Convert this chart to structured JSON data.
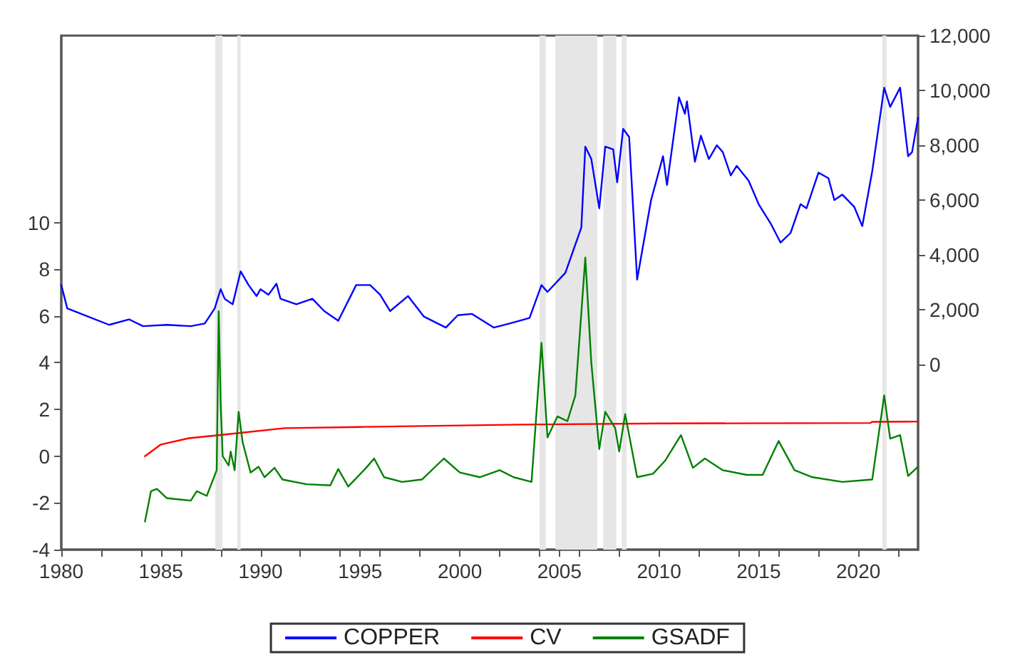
{
  "chart_data": {
    "type": "line",
    "xlim": [
      1980,
      2023
    ],
    "xticks": [
      1980,
      1985,
      1990,
      1995,
      2000,
      2005,
      2010,
      2015,
      2020
    ],
    "ylim": [
      -4,
      18
    ],
    "yticks": [
      -4,
      -2,
      0,
      2,
      4,
      6,
      8,
      10
    ],
    "y2lim": [
      -6750,
      12000
    ],
    "y2ticks": [
      {
        "value": 0,
        "label": "0"
      },
      {
        "value": 2000,
        "label": "2,000"
      },
      {
        "value": 4000,
        "label": "4,000"
      },
      {
        "value": 6000,
        "label": "6,000"
      },
      {
        "value": 8000,
        "label": "8,000"
      },
      {
        "value": 10000,
        "label": "10,000"
      },
      {
        "value": 12000,
        "label": "12,000"
      }
    ],
    "grid": false,
    "legend": "bottom",
    "marker": "none",
    "line_style": "solid",
    "bands": [
      {
        "axis": "x",
        "from": 1987.73,
        "to": 1988.09,
        "color": "#e6e6e6"
      },
      {
        "axis": "x",
        "from": 1988.83,
        "to": 1989.0,
        "color": "#e6e6e6"
      },
      {
        "axis": "x",
        "from": 2004.0,
        "to": 2004.32,
        "color": "#e6e6e6"
      },
      {
        "axis": "x",
        "from": 2004.8,
        "to": 2006.9,
        "color": "#e6e6e6"
      },
      {
        "axis": "x",
        "from": 2007.2,
        "to": 2007.85,
        "color": "#e6e6e6"
      },
      {
        "axis": "x",
        "from": 2008.13,
        "to": 2008.37,
        "color": "#e6e6e6"
      },
      {
        "axis": "x",
        "from": 2021.2,
        "to": 2021.42,
        "color": "#e6e6e6"
      }
    ],
    "series": [
      {
        "name": "COPPER",
        "color": "#0000ff",
        "axis": "y2",
        "x": [
          1980.0,
          1980.3,
          1981.0,
          1982.4,
          1983.4,
          1984.1,
          1985.3,
          1986.5,
          1987.2,
          1987.7,
          1988.0,
          1988.2,
          1988.6,
          1989.0,
          1989.4,
          1989.8,
          1990.0,
          1990.4,
          1990.8,
          1991.0,
          1991.8,
          1992.6,
          1993.2,
          1993.9,
          1994.8,
          1995.5,
          1996.0,
          1996.5,
          1997.4,
          1998.2,
          1999.3,
          1999.9,
          2000.6,
          2001.7,
          2002.5,
          2003.5,
          2004.1,
          2004.4,
          2005.3,
          2006.1,
          2006.3,
          2006.6,
          2007.0,
          2007.3,
          2007.7,
          2007.9,
          2008.2,
          2008.5,
          2008.9,
          2009.6,
          2010.2,
          2010.4,
          2011.0,
          2011.3,
          2011.4,
          2011.8,
          2012.1,
          2012.5,
          2012.9,
          2013.2,
          2013.6,
          2013.9,
          2014.5,
          2015.0,
          2015.6,
          2016.1,
          2016.6,
          2017.1,
          2017.4,
          2018.0,
          2018.5,
          2018.8,
          2019.2,
          2019.8,
          2020.2,
          2020.7,
          2021.3,
          2021.6,
          2022.1,
          2022.5,
          2022.7,
          2023.0
        ],
        "values": [
          2900,
          2050,
          1850,
          1450,
          1650,
          1400,
          1450,
          1400,
          1500,
          2050,
          2750,
          2400,
          2200,
          3400,
          2900,
          2500,
          2750,
          2550,
          2950,
          2400,
          2200,
          2400,
          1950,
          1600,
          2900,
          2900,
          2550,
          1950,
          2500,
          1750,
          1350,
          1800,
          1850,
          1350,
          1500,
          1700,
          2900,
          2650,
          3350,
          5000,
          7950,
          7500,
          5700,
          7950,
          7850,
          6650,
          8600,
          8300,
          3100,
          6000,
          7600,
          6550,
          9750,
          9150,
          9600,
          7400,
          8350,
          7500,
          8000,
          7750,
          6900,
          7250,
          6700,
          5850,
          5150,
          4450,
          4800,
          5850,
          5700,
          7000,
          6800,
          6000,
          6200,
          5750,
          5050,
          7050,
          10100,
          9400,
          10100,
          7600,
          7750,
          9000
        ]
      },
      {
        "name": "CV",
        "color": "#ff0000",
        "x": [
          1984.2,
          1985.0,
          1986.4,
          1987.9,
          1991.2,
          1995.0,
          2003.0,
          2010.0,
          2020.6,
          2020.7,
          2023.0
        ],
        "values": [
          0.0,
          0.5,
          0.77,
          0.9,
          1.2,
          1.25,
          1.35,
          1.4,
          1.42,
          1.47,
          1.48
        ]
      },
      {
        "name": "GSADF",
        "color": "#008000",
        "x": [
          1984.2,
          1984.5,
          1984.8,
          1985.3,
          1986.5,
          1986.8,
          1987.3,
          1987.8,
          1987.9,
          1988.0,
          1988.1,
          1988.4,
          1988.5,
          1988.7,
          1988.9,
          1989.1,
          1989.5,
          1989.9,
          1990.2,
          1990.7,
          1991.1,
          1992.3,
          1993.5,
          1993.9,
          1994.4,
          1995.3,
          1995.7,
          1996.2,
          1997.1,
          1998.1,
          1999.2,
          2000.0,
          2001.0,
          2002.0,
          2002.7,
          2003.6,
          2004.1,
          2004.4,
          2004.9,
          2005.4,
          2005.8,
          2006.3,
          2006.6,
          2007.0,
          2007.3,
          2007.8,
          2008.0,
          2008.3,
          2008.9,
          2009.7,
          2010.3,
          2011.1,
          2011.7,
          2012.3,
          2013.2,
          2014.4,
          2015.2,
          2016.0,
          2016.8,
          2017.7,
          2019.2,
          2020.7,
          2021.3,
          2021.6,
          2022.1,
          2022.5,
          2023.0
        ],
        "values": [
          -2.8,
          -1.5,
          -1.4,
          -1.8,
          -1.9,
          -1.5,
          -1.7,
          -0.6,
          6.2,
          2.2,
          0.0,
          -0.4,
          0.2,
          -0.6,
          1.9,
          0.6,
          -0.7,
          -0.45,
          -0.9,
          -0.5,
          -1.0,
          -1.2,
          -1.25,
          -0.55,
          -1.3,
          -0.5,
          -0.1,
          -0.9,
          -1.1,
          -1.0,
          -0.1,
          -0.7,
          -0.9,
          -0.6,
          -0.9,
          -1.1,
          4.85,
          0.8,
          1.7,
          1.5,
          2.6,
          8.5,
          4.0,
          0.3,
          1.9,
          1.2,
          0.2,
          1.8,
          -0.9,
          -0.75,
          -0.2,
          0.9,
          -0.5,
          -0.1,
          -0.6,
          -0.8,
          -0.8,
          0.65,
          -0.6,
          -0.9,
          -1.1,
          -1.0,
          2.6,
          0.75,
          0.9,
          -0.85,
          -0.45
        ]
      }
    ]
  }
}
